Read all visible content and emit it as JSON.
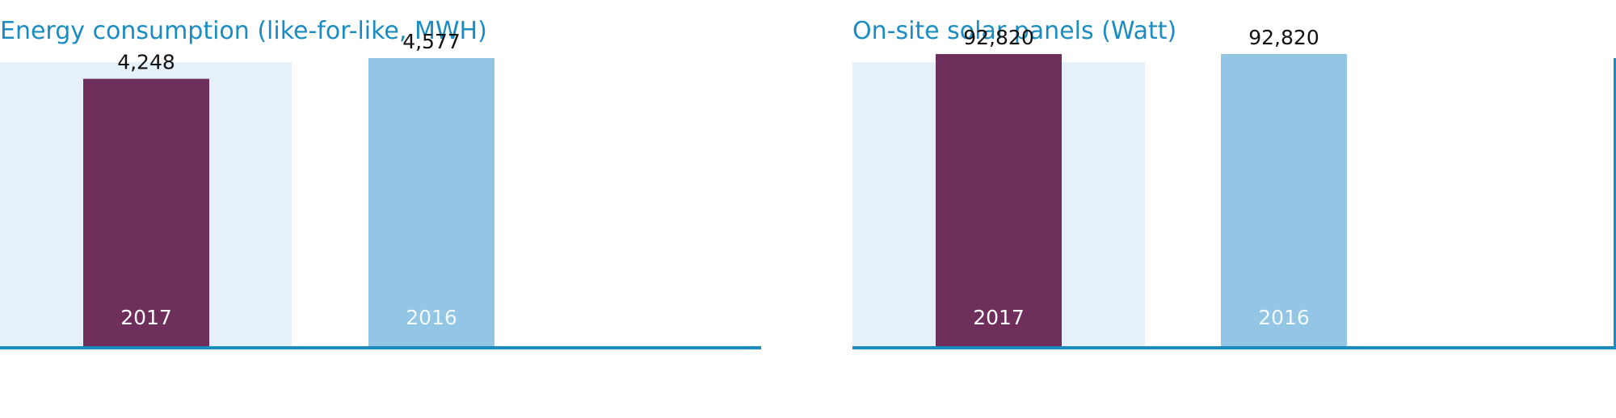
{
  "chart_data": [
    {
      "type": "bar",
      "title": "Energy consumption (like-for-like, MWH)",
      "categories": [
        "2017",
        "2016"
      ],
      "values": [
        4248,
        4577
      ],
      "value_labels": [
        "4,248",
        "4,577"
      ],
      "ylim": [
        0,
        5500
      ],
      "grid": false,
      "colors": {
        "bars": [
          "#6e2f5c",
          "#93c6e4"
        ],
        "highlight_band": "#e5f0f8",
        "baseline": "#1a8cc2",
        "title": "#1a8cc2",
        "category_text": [
          "#ffffff",
          "#f2f8fc"
        ]
      }
    },
    {
      "type": "bar",
      "title": "On-site solar panels (Watt)",
      "categories": [
        "2017",
        "2016"
      ],
      "values": [
        92820,
        92820
      ],
      "value_labels": [
        "92,820",
        "92,820"
      ],
      "ylim": [
        0,
        110000
      ],
      "grid": false,
      "colors": {
        "bars": [
          "#6e2f5c",
          "#93c6e4"
        ],
        "highlight_band": "#e5f0f8",
        "baseline": "#1a8cc2",
        "title": "#1a8cc2",
        "category_text": [
          "#ffffff",
          "#f2f8fc"
        ]
      }
    }
  ]
}
